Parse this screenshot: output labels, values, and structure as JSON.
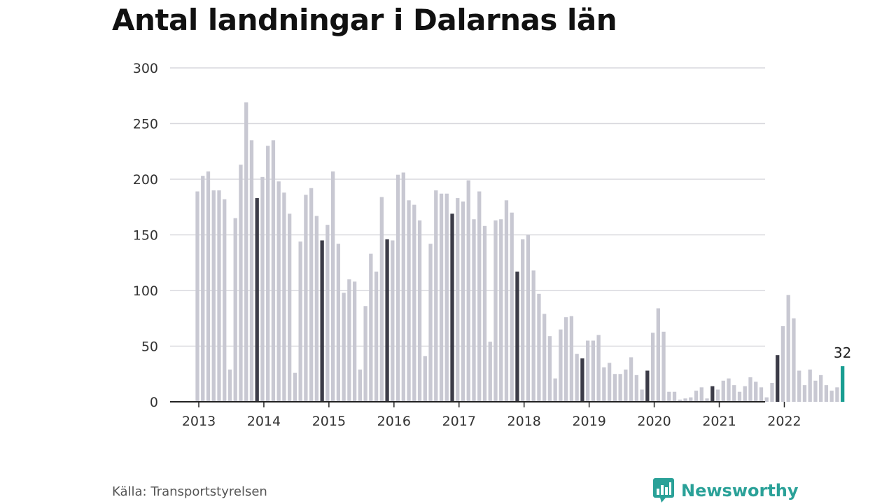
{
  "title": "Antal landningar i Dalarnas län",
  "source": "Källa: Transportstyrelsen",
  "brand": {
    "name": "Newsworthy",
    "icon": "newsworthy-logo-icon"
  },
  "colors": {
    "bar": "#c8c8d2",
    "highlight": "#3c3c48",
    "latest": "#1a9e92",
    "grid": "#d9d9de",
    "axis": "#222222",
    "brand": "#2aa198"
  },
  "chart_data": {
    "type": "bar",
    "title": "Antal landningar i Dalarnas län",
    "xlabel": "",
    "ylabel": "",
    "ylim": [
      0,
      300
    ],
    "yticks": [
      0,
      50,
      100,
      150,
      200,
      250,
      300
    ],
    "grid": true,
    "x_tick_labels": [
      "2013",
      "2014",
      "2015",
      "2016",
      "2017",
      "2018",
      "2019",
      "2020",
      "2021",
      "2022"
    ],
    "start_month": "2013-01",
    "values": [
      189,
      203,
      207,
      190,
      190,
      182,
      29,
      165,
      213,
      269,
      235,
      183,
      202,
      230,
      235,
      198,
      188,
      169,
      26,
      144,
      186,
      192,
      167,
      145,
      159,
      207,
      142,
      98,
      110,
      108,
      29,
      86,
      133,
      117,
      184,
      146,
      145,
      204,
      206,
      181,
      177,
      163,
      41,
      142,
      190,
      187,
      187,
      169,
      183,
      180,
      199,
      164,
      189,
      158,
      54,
      163,
      164,
      181,
      170,
      117,
      146,
      150,
      118,
      97,
      79,
      59,
      21,
      65,
      76,
      77,
      43,
      39,
      55,
      55,
      60,
      31,
      35,
      25,
      25,
      29,
      40,
      24,
      11,
      28,
      62,
      84,
      63,
      9,
      9,
      2,
      3,
      4,
      10,
      13,
      3,
      14,
      11,
      19,
      21,
      15,
      9,
      14,
      22,
      18,
      13,
      4,
      17,
      42,
      68,
      96,
      75,
      28,
      15,
      29,
      19,
      24,
      15,
      10,
      13,
      32
    ],
    "highlight_months": "december",
    "latest_value_label": "32"
  }
}
